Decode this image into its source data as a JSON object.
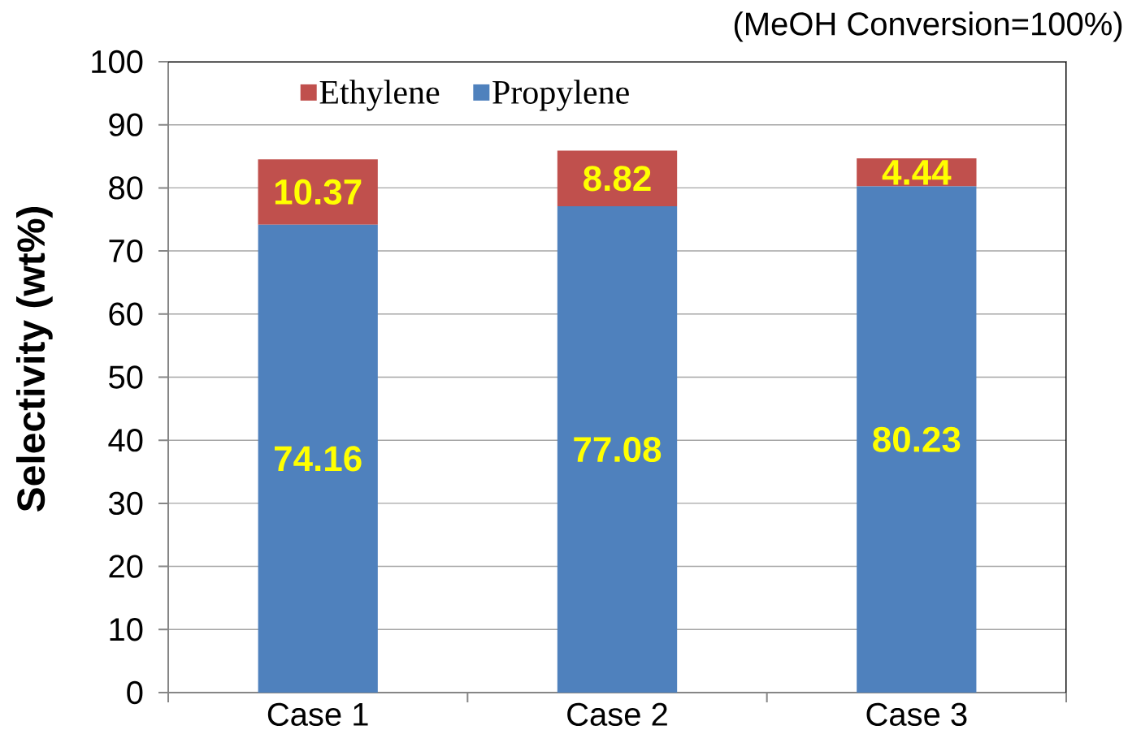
{
  "chart_data": {
    "type": "bar",
    "stacked": true,
    "categories": [
      "Case 1",
      "Case 2",
      "Case 3"
    ],
    "series": [
      {
        "name": "Propylene",
        "color": "#4f81bd",
        "values": [
          74.16,
          77.08,
          80.23
        ]
      },
      {
        "name": "Ethylene",
        "color": "#c0504d",
        "values": [
          10.37,
          8.82,
          4.44
        ]
      }
    ],
    "ylabel": "Selectivity (wt%)",
    "ylim": [
      0,
      100
    ],
    "yticks": [
      0,
      10,
      20,
      30,
      40,
      50,
      60,
      70,
      80,
      90,
      100
    ],
    "grid": "y",
    "legend": "top left",
    "data_labels": true,
    "annotations": [
      "(MeOH Conversion=100%)"
    ]
  }
}
